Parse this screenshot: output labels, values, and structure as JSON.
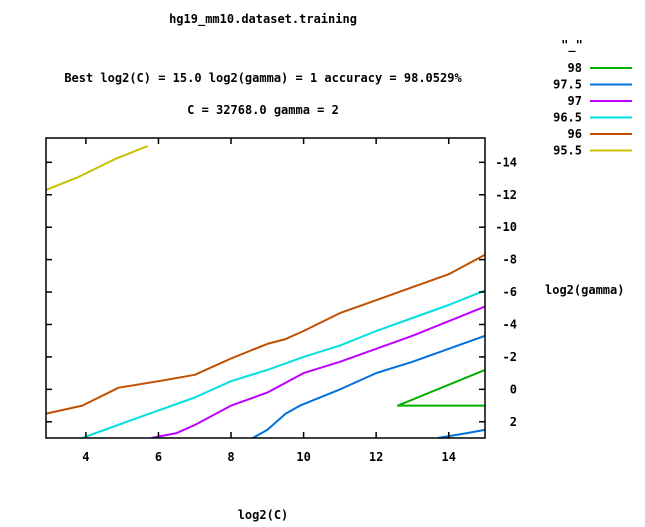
{
  "chart_data": {
    "type": "line",
    "title": "hg19_mm10.dataset.training",
    "subtitle_line1": "Best log2(C) = 15.0  log2(gamma) = 1  accuracy = 98.0529%",
    "subtitle_line2": "C = 32768.0  gamma = 2",
    "xlabel": "log2(C)",
    "ylabel": "log2(gamma)",
    "xlim": [
      2.9,
      15.0
    ],
    "ylim": [
      3.0,
      -15.5
    ],
    "x_ticks": [
      4,
      6,
      8,
      10,
      12,
      14
    ],
    "y_ticks": [
      2,
      0,
      -2,
      -4,
      -6,
      -8,
      -10,
      -12,
      -14
    ],
    "y_tick_labels": [
      "2",
      "0",
      "-2",
      "-4",
      "-6",
      "-8",
      "-10",
      "-12",
      "-14"
    ],
    "grid": false,
    "legend_position": "top-right",
    "legend_title": "\"_\"",
    "series": [
      {
        "name": "98",
        "color": "#00b000",
        "segments": [
          [
            [
              15.0,
              -1.2
            ],
            [
              12.6,
              1.0
            ],
            [
              12.9,
              1.0
            ],
            [
              15.0,
              1.0
            ]
          ]
        ]
      },
      {
        "name": "97.5",
        "color": "#0070e0",
        "segments": [
          [
            [
              8.6,
              3.0
            ],
            [
              9.0,
              2.5
            ],
            [
              9.5,
              1.5
            ],
            [
              9.9,
              1.0
            ],
            [
              11.0,
              0.0
            ],
            [
              12.0,
              -1.0
            ],
            [
              13.0,
              -1.7
            ],
            [
              14.0,
              -2.5
            ],
            [
              15.0,
              -3.3
            ]
          ],
          [
            [
              13.7,
              3.0
            ],
            [
              14.5,
              2.7
            ],
            [
              15.0,
              2.5
            ]
          ]
        ]
      },
      {
        "name": "97",
        "color": "#c000ff",
        "segments": [
          [
            [
              5.8,
              3.0
            ],
            [
              6.5,
              2.7
            ],
            [
              7.0,
              2.2
            ],
            [
              8.0,
              1.0
            ],
            [
              9.0,
              0.2
            ],
            [
              10.0,
              -1.0
            ],
            [
              11.0,
              -1.7
            ],
            [
              12.0,
              -2.5
            ],
            [
              13.0,
              -3.3
            ],
            [
              14.0,
              -4.2
            ],
            [
              15.0,
              -5.1
            ]
          ]
        ]
      },
      {
        "name": "96.5",
        "color": "#00e0e0",
        "segments": [
          [
            [
              3.9,
              3.0
            ],
            [
              5.0,
              2.1
            ],
            [
              6.0,
              1.3
            ],
            [
              7.0,
              0.5
            ],
            [
              8.0,
              -0.5
            ],
            [
              9.0,
              -1.2
            ],
            [
              10.0,
              -2.0
            ],
            [
              11.0,
              -2.7
            ],
            [
              12.0,
              -3.6
            ],
            [
              13.0,
              -4.4
            ],
            [
              14.0,
              -5.2
            ],
            [
              15.0,
              -6.1
            ]
          ]
        ]
      },
      {
        "name": "96",
        "color": "#c05000",
        "segments": [
          [
            [
              2.9,
              1.5
            ],
            [
              3.9,
              1.0
            ],
            [
              4.9,
              -0.1
            ],
            [
              6.0,
              -0.5
            ],
            [
              7.0,
              -0.9
            ],
            [
              8.0,
              -1.9
            ],
            [
              9.0,
              -2.8
            ],
            [
              9.5,
              -3.1
            ],
            [
              10.0,
              -3.6
            ],
            [
              11.0,
              -4.7
            ],
            [
              12.0,
              -5.5
            ],
            [
              13.0,
              -6.3
            ],
            [
              14.0,
              -7.1
            ],
            [
              15.0,
              -8.3
            ]
          ]
        ]
      },
      {
        "name": "95.5",
        "color": "#c8c000",
        "segments": [
          [
            [
              2.9,
              -12.3
            ],
            [
              3.8,
              -13.1
            ],
            [
              4.8,
              -14.2
            ],
            [
              5.7,
              -15.0
            ]
          ]
        ]
      }
    ]
  }
}
